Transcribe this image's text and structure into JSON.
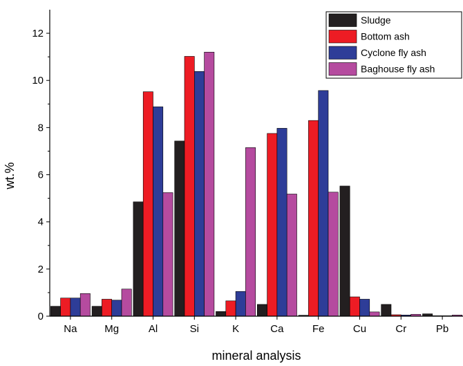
{
  "chart_data": {
    "type": "bar",
    "xlabel": "mineral analysis",
    "ylabel": "wt.%",
    "ylim": [
      0,
      13
    ],
    "yticks": [
      0,
      2,
      4,
      6,
      8,
      10,
      12
    ],
    "categories": [
      "Na",
      "Mg",
      "Al",
      "Si",
      "K",
      "Ca",
      "Fe",
      "Cu",
      "Cr",
      "Pb"
    ],
    "series": [
      {
        "name": "Sludge",
        "color": "#231f20",
        "values": [
          0.42,
          0.42,
          4.85,
          7.43,
          0.2,
          0.5,
          0.04,
          5.52,
          0.5,
          0.1
        ]
      },
      {
        "name": "Bottom ash",
        "color": "#ed1c24",
        "values": [
          0.77,
          0.72,
          9.52,
          11.02,
          0.65,
          7.75,
          8.3,
          0.82,
          0.06,
          0.02
        ]
      },
      {
        "name": "Cyclone fly ash",
        "color": "#2e3d98",
        "values": [
          0.77,
          0.68,
          8.88,
          10.38,
          1.05,
          7.97,
          9.57,
          0.72,
          0.05,
          0.02
        ]
      },
      {
        "name": "Baghouse fly ash",
        "color": "#b54b9f",
        "values": [
          0.96,
          1.15,
          5.24,
          11.2,
          7.15,
          5.18,
          5.26,
          0.18,
          0.08,
          0.05
        ]
      }
    ],
    "legend_position": "top-right",
    "grid": false
  }
}
